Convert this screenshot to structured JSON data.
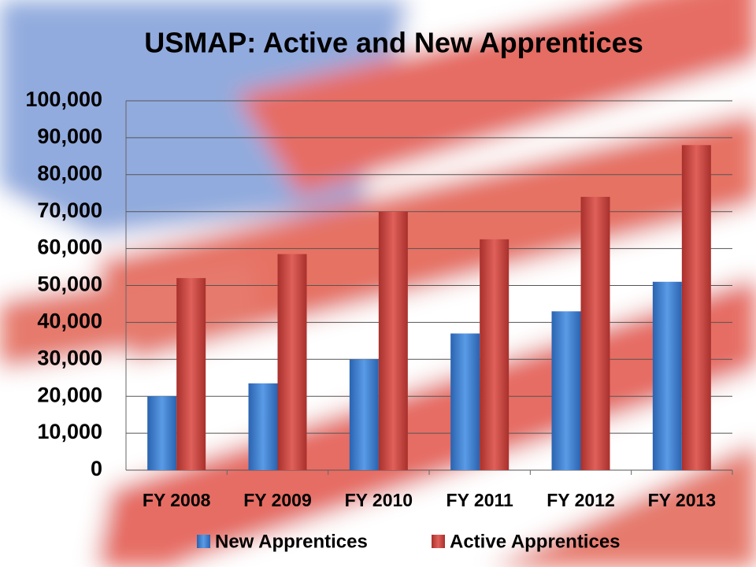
{
  "chart_data": {
    "type": "bar",
    "title": "USMAP: Active and New Apprentices",
    "categories": [
      "FY 2008",
      "FY 2009",
      "FY 2010",
      "FY 2011",
      "FY 2012",
      "FY 2013"
    ],
    "series": [
      {
        "name": "New Apprentices",
        "color": "#3f7fd0",
        "values": [
          20000,
          23500,
          30000,
          37000,
          43000,
          51000
        ]
      },
      {
        "name": "Active Apprentices",
        "color": "#d0403c",
        "values": [
          52000,
          58500,
          70000,
          62500,
          74000,
          88000
        ]
      }
    ],
    "ylim": [
      0,
      100000
    ],
    "yticks": [
      0,
      {
        "value": 10000,
        "label": "10,000"
      },
      {
        "value": 20000,
        "label": "20,000"
      },
      {
        "value": 30000,
        "label": "30,000"
      },
      {
        "value": 40000,
        "label": "40,000"
      },
      {
        "value": 50000,
        "label": "50,000"
      },
      {
        "value": 60000,
        "label": "60,000"
      },
      {
        "value": 70000,
        "label": "70,000"
      },
      {
        "value": 80000,
        "label": "80,000"
      },
      {
        "value": 90000,
        "label": "90,000"
      },
      {
        "value": 100000,
        "label": "100,000"
      }
    ],
    "grid": true,
    "legend": "bottom"
  }
}
